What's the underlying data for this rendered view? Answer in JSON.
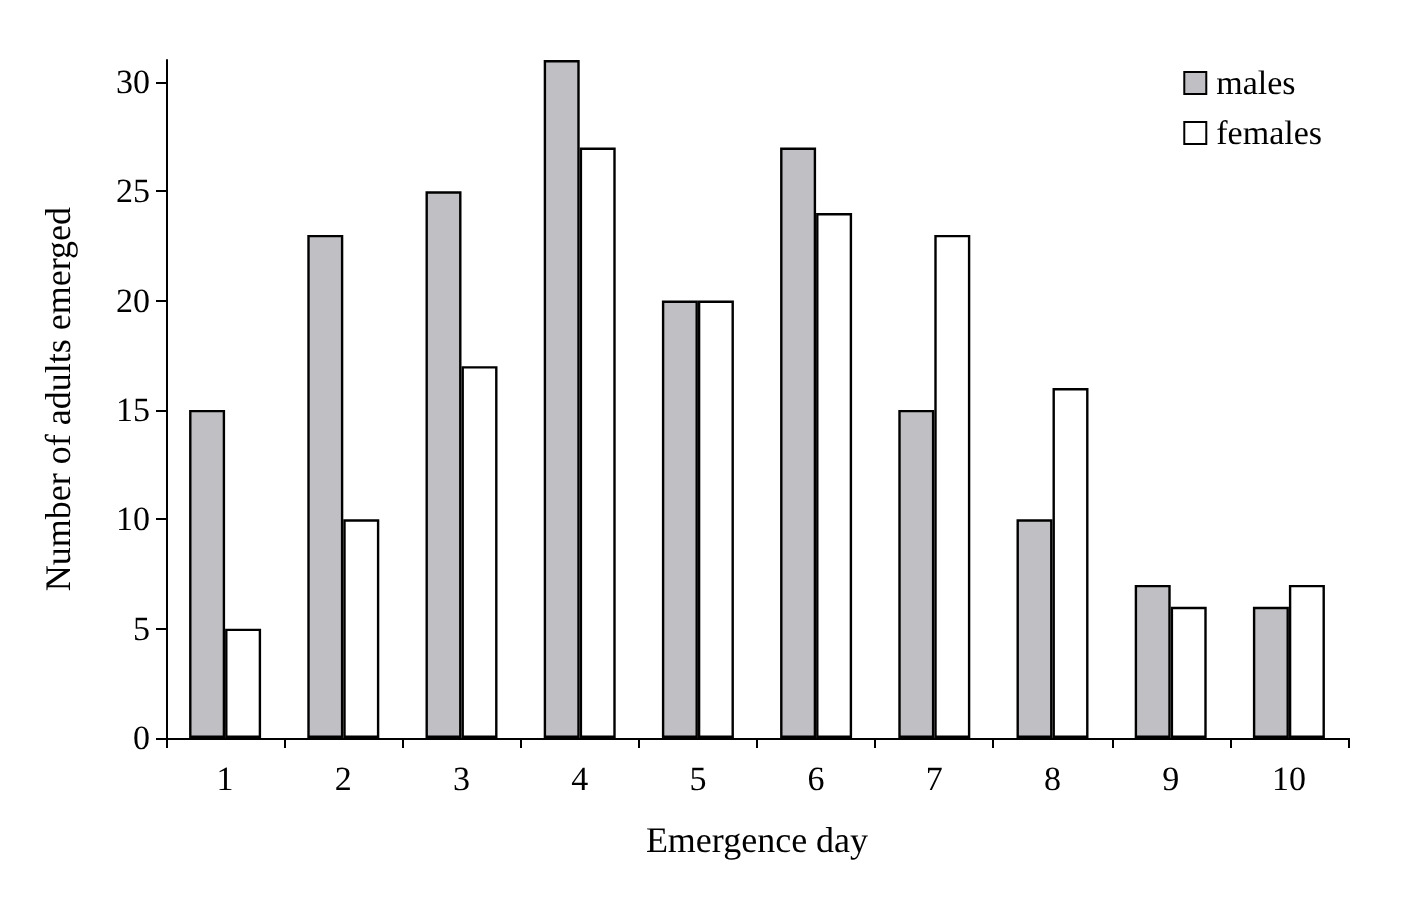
{
  "chart_data": {
    "type": "bar",
    "xlabel": "Emergence day",
    "ylabel": "Number of adults emerged",
    "categories": [
      "1",
      "2",
      "3",
      "4",
      "5",
      "6",
      "7",
      "8",
      "9",
      "10"
    ],
    "series": [
      {
        "name": "males",
        "color": "#c0c0c4",
        "values": [
          15,
          23,
          25,
          31,
          20,
          27,
          15,
          10,
          7,
          6
        ]
      },
      {
        "name": "females",
        "color": "#ffffff",
        "values": [
          5,
          10,
          17,
          27,
          20,
          24,
          23,
          16,
          6,
          7
        ]
      }
    ],
    "ylim": [
      0,
      31
    ],
    "yticks": [
      0,
      5,
      10,
      15,
      20,
      25,
      30
    ],
    "grid": false,
    "legend": "top right"
  }
}
